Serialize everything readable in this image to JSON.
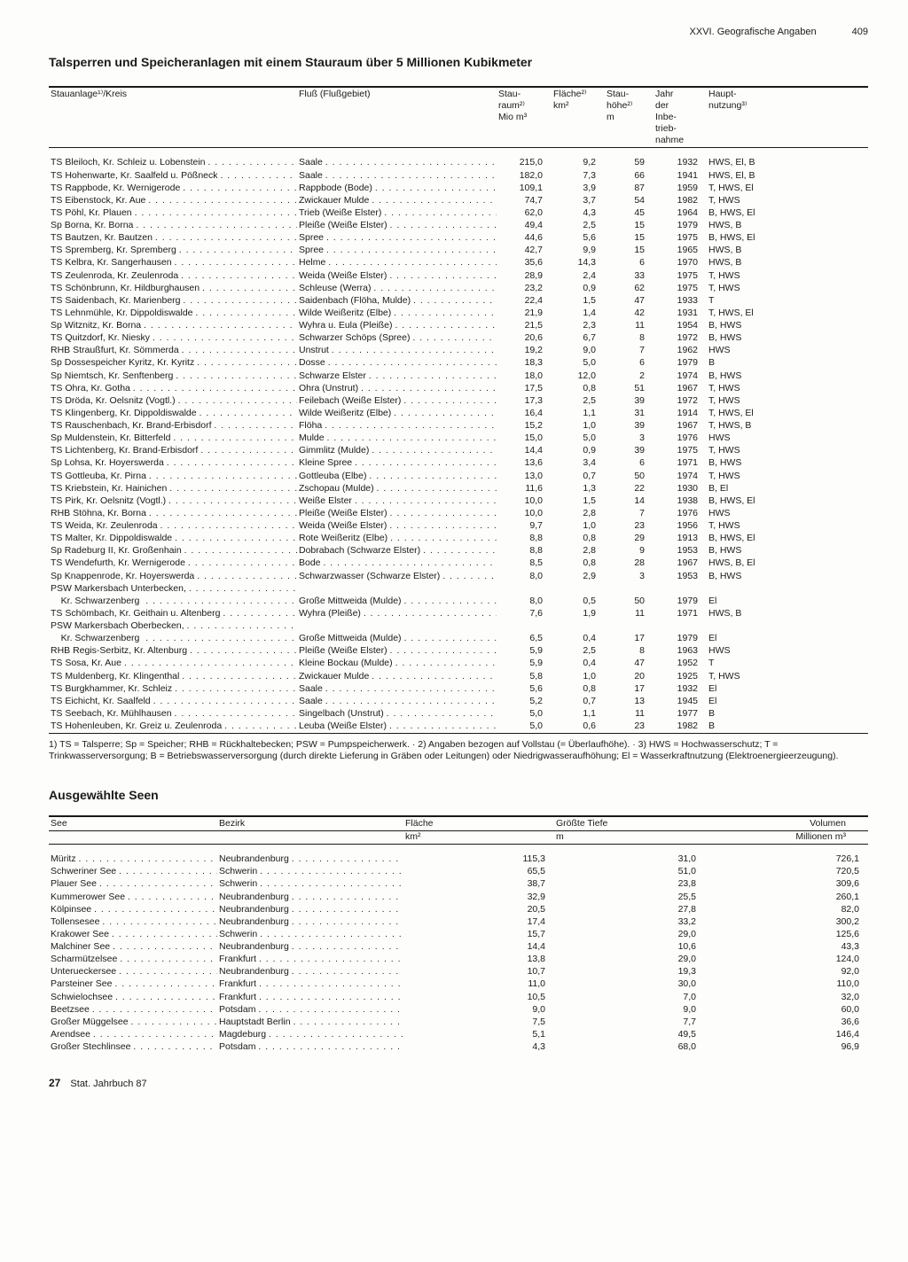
{
  "header": {
    "section": "XXVI. Geografische Angaben",
    "page": "409"
  },
  "title1": "Talsperren und Speicheranlagen mit einem Stauraum über 5 Millionen Kubikmeter",
  "dams": {
    "columns": {
      "c1": "Stauanlage¹⁾/Kreis",
      "c2": "Fluß (Flußgebiet)",
      "c3a": "Stau-",
      "c3b": "raum²⁾",
      "c3c": "Mio m³",
      "c4a": "Fläche²⁾",
      "c4b": "km²",
      "c5a": "Stau-",
      "c5b": "höhe²⁾",
      "c5c": "m",
      "c6a": "Jahr",
      "c6b": "der",
      "c6c": "Inbe-",
      "c6d": "trieb-",
      "c6e": "nahme",
      "c7a": "Haupt-",
      "c7b": "nutzung³⁾"
    },
    "rows": [
      [
        "TS Bleiloch, Kr. Schleiz u. Lobenstein",
        "Saale",
        "215,0",
        "9,2",
        "59",
        "1932",
        "HWS, El, B"
      ],
      [
        "TS Hohenwarte, Kr. Saalfeld u. Pößneck",
        "Saale",
        "182,0",
        "7,3",
        "66",
        "1941",
        "HWS, El, B"
      ],
      [
        "TS Rappbode, Kr. Wernigerode",
        "Rappbode (Bode)",
        "109,1",
        "3,9",
        "87",
        "1959",
        "T, HWS, El"
      ],
      [
        "TS Eibenstock, Kr. Aue",
        "Zwickauer Mulde",
        "74,7",
        "3,7",
        "54",
        "1982",
        "T, HWS"
      ],
      [
        "TS Pöhl, Kr. Plauen",
        "Trieb (Weiße Elster)",
        "62,0",
        "4,3",
        "45",
        "1964",
        "B, HWS, El"
      ],
      [
        "Sp Borna, Kr. Borna",
        "Pleiße (Weiße Elster)",
        "49,4",
        "2,5",
        "15",
        "1979",
        "HWS, B"
      ],
      [
        "TS Bautzen, Kr. Bautzen",
        "Spree",
        "44,6",
        "5,6",
        "15",
        "1975",
        "B, HWS, El"
      ],
      [
        "TS Spremberg, Kr. Spremberg",
        "Spree",
        "42,7",
        "9,9",
        "15",
        "1965",
        "HWS, B"
      ],
      [
        "TS Kelbra, Kr. Sangerhausen",
        "Helme",
        "35,6",
        "14,3",
        "6",
        "1970",
        "HWS, B"
      ],
      [
        "TS Zeulenroda, Kr. Zeulenroda",
        "Weida (Weiße Elster)",
        "28,9",
        "2,4",
        "33",
        "1975",
        "T, HWS"
      ],
      [
        "TS Schönbrunn, Kr. Hildburghausen",
        "Schleuse (Werra)",
        "23,2",
        "0,9",
        "62",
        "1975",
        "T, HWS"
      ],
      [
        "TS Saidenbach, Kr. Marienberg",
        "Saidenbach (Flöha, Mulde)",
        "22,4",
        "1,5",
        "47",
        "1933",
        "T"
      ],
      [
        "TS Lehnmühle, Kr. Dippoldiswalde",
        "Wilde Weißeritz (Elbe)",
        "21,9",
        "1,4",
        "42",
        "1931",
        "T, HWS, El"
      ],
      [
        "Sp Witznitz, Kr. Borna",
        "Wyhra u. Eula (Pleiße)",
        "21,5",
        "2,3",
        "11",
        "1954",
        "B, HWS"
      ],
      [
        "TS Quitzdorf, Kr. Niesky",
        "Schwarzer Schöps (Spree)",
        "20,6",
        "6,7",
        "8",
        "1972",
        "B, HWS"
      ],
      [
        "RHB Straußfurt, Kr. Sömmerda",
        "Unstrut",
        "19,2",
        "9,0",
        "7",
        "1962",
        "HWS"
      ],
      [
        "Sp Dossespeicher Kyritz, Kr. Kyritz",
        "Dosse",
        "18,3",
        "5,0",
        "6",
        "1979",
        "B"
      ],
      [
        "Sp Niemtsch, Kr. Senftenberg",
        "Schwarze Elster",
        "18,0",
        "12,0",
        "2",
        "1974",
        "B, HWS"
      ],
      [
        "TS Ohra, Kr. Gotha",
        "Ohra (Unstrut)",
        "17,5",
        "0,8",
        "51",
        "1967",
        "T, HWS"
      ],
      [
        "TS Dröda, Kr. Oelsnitz (Vogtl.)",
        "Feilebach (Weiße Elster)",
        "17,3",
        "2,5",
        "39",
        "1972",
        "T, HWS"
      ],
      [
        "TS Klingenberg, Kr. Dippoldiswalde",
        "Wilde Weißeritz (Elbe)",
        "16,4",
        "1,1",
        "31",
        "1914",
        "T, HWS, El"
      ],
      [
        "TS Rauschenbach, Kr. Brand-Erbisdorf",
        "Flöha",
        "15,2",
        "1,0",
        "39",
        "1967",
        "T, HWS, B"
      ],
      [
        "Sp Muldenstein, Kr. Bitterfeld",
        "Mulde",
        "15,0",
        "5,0",
        "3",
        "1976",
        "HWS"
      ],
      [
        "TS Lichtenberg, Kr. Brand-Erbisdorf",
        "Gimmlitz (Mulde)",
        "14,4",
        "0,9",
        "39",
        "1975",
        "T, HWS"
      ],
      [
        "Sp Lohsa, Kr. Hoyerswerda",
        "Kleine Spree",
        "13,6",
        "3,4",
        "6",
        "1971",
        "B, HWS"
      ],
      [
        "TS Gottleuba, Kr. Pirna",
        "Gottleuba (Elbe)",
        "13,0",
        "0,7",
        "50",
        "1974",
        "T, HWS"
      ],
      [
        "TS Kriebstein, Kr. Hainichen",
        "Zschopau (Mulde)",
        "11,6",
        "1,3",
        "22",
        "1930",
        "B, El"
      ],
      [
        "TS Pirk, Kr. Oelsnitz (Vogtl.)",
        "Weiße Elster",
        "10,0",
        "1,5",
        "14",
        "1938",
        "B, HWS, El"
      ],
      [
        "RHB Stöhna, Kr. Borna",
        "Pleiße (Weiße Elster)",
        "10,0",
        "2,8",
        "7",
        "1976",
        "HWS"
      ],
      [
        "TS Weida, Kr. Zeulenroda",
        "Weida (Weiße Elster)",
        "9,7",
        "1,0",
        "23",
        "1956",
        "T, HWS"
      ],
      [
        "TS Malter, Kr. Dippoldiswalde",
        "Rote Weißeritz (Elbe)",
        "8,8",
        "0,8",
        "29",
        "1913",
        "B, HWS, El"
      ],
      [
        "Sp Radeburg II, Kr. Großenhain",
        "Dobrabach (Schwarze Elster)",
        "8,8",
        "2,8",
        "9",
        "1953",
        "B, HWS"
      ],
      [
        "TS Wendefurth, Kr. Wernigerode",
        "Bode",
        "8,5",
        "0,8",
        "28",
        "1967",
        "HWS, B, El"
      ],
      [
        "Sp Knappenrode, Kr. Hoyerswerda",
        "Schwarzwasser (Schwarze Elster)",
        "8,0",
        "2,9",
        "3",
        "1953",
        "B, HWS"
      ],
      [
        "PSW Markersbach Unterbecken,",
        "",
        "",
        "",
        "",
        "",
        ""
      ],
      [
        "    Kr. Schwarzenberg",
        "Große Mittweida (Mulde)",
        "8,0",
        "0,5",
        "50",
        "1979",
        "El"
      ],
      [
        "TS Schömbach, Kr. Geithain u. Altenberg",
        "Wyhra (Pleiße)",
        "7,6",
        "1,9",
        "11",
        "1971",
        "HWS, B"
      ],
      [
        "PSW Markersbach Oberbecken,",
        "",
        "",
        "",
        "",
        "",
        ""
      ],
      [
        "    Kr. Schwarzenberg",
        "Große Mittweida (Mulde)",
        "6,5",
        "0,4",
        "17",
        "1979",
        "El"
      ],
      [
        "RHB Regis-Serbitz, Kr. Altenburg",
        "Pleiße (Weiße Elster)",
        "5,9",
        "2,5",
        "8",
        "1963",
        "HWS"
      ],
      [
        "TS Sosa, Kr. Aue",
        "Kleine Bockau (Mulde)",
        "5,9",
        "0,4",
        "47",
        "1952",
        "T"
      ],
      [
        "TS Muldenberg, Kr. Klingenthal",
        "Zwickauer Mulde",
        "5,8",
        "1,0",
        "20",
        "1925",
        "T, HWS"
      ],
      [
        "TS Burgkhammer, Kr. Schleiz",
        "Saale",
        "5,6",
        "0,8",
        "17",
        "1932",
        "El"
      ],
      [
        "TS Eichicht, Kr. Saalfeld",
        "Saale",
        "5,2",
        "0,7",
        "13",
        "1945",
        "El"
      ],
      [
        "TS Seebach, Kr. Mühlhausen",
        "Singelbach (Unstrut)",
        "5,0",
        "1,1",
        "11",
        "1977",
        "B"
      ],
      [
        "TS Hohenleuben, Kr. Greiz u. Zeulenroda",
        "Leuba (Weiße Elster)",
        "5,0",
        "0,6",
        "23",
        "1982",
        "B"
      ]
    ],
    "footnote": "1) TS = Talsperre; Sp = Speicher; RHB = Rückhaltebecken; PSW = Pumpspeicherwerk. · 2) Angaben bezogen auf Vollstau (= Überlaufhöhe). · 3) HWS = Hochwasserschutz; T = Trinkwasserversorgung; B = Betriebswasserversorgung (durch direkte Lieferung in Gräben oder Leitungen) oder Niedrigwasseraufhöhung; El = Wasserkraftnutzung (Elektroenergieerzeugung)."
  },
  "title2": "Ausgewählte Seen",
  "lakes": {
    "columns": {
      "c1": "See",
      "c2": "Bezirk",
      "c3a": "Fläche",
      "c3b": "km²",
      "c4a": "Größte Tiefe",
      "c4b": "m",
      "c5a": "Volumen",
      "c5b": "Millionen m³"
    },
    "rows": [
      [
        "Müritz",
        "Neubrandenburg",
        "115,3",
        "31,0",
        "726,1"
      ],
      [
        "Schweriner See",
        "Schwerin",
        "65,5",
        "51,0",
        "720,5"
      ],
      [
        "Plauer See",
        "Schwerin",
        "38,7",
        "23,8",
        "309,6"
      ],
      [
        "Kummerower See",
        "Neubrandenburg",
        "32,9",
        "25,5",
        "260,1"
      ],
      [
        "Kölpinsee",
        "Neubrandenburg",
        "20,5",
        "27,8",
        "82,0"
      ],
      [
        "Tollensesee",
        "Neubrandenburg",
        "17,4",
        "33,2",
        "300,2"
      ],
      [
        "Krakower See",
        "Schwerin",
        "15,7",
        "29,0",
        "125,6"
      ],
      [
        "Malchiner See",
        "Neubrandenburg",
        "14,4",
        "10,6",
        "43,3"
      ],
      [
        "Scharmützelsee",
        "Frankfurt",
        "13,8",
        "29,0",
        "124,0"
      ],
      [
        "Unterueckersee",
        "Neubrandenburg",
        "10,7",
        "19,3",
        "92,0"
      ],
      [
        "Parsteiner See",
        "Frankfurt",
        "11,0",
        "30,0",
        "110,0"
      ],
      [
        "Schwielochsee",
        "Frankfurt",
        "10,5",
        "7,0",
        "32,0"
      ],
      [
        "Beetzsee",
        "Potsdam",
        "9,0",
        "9,0",
        "60,0"
      ],
      [
        "Großer Müggelsee",
        "Hauptstadt Berlin",
        "7,5",
        "7,7",
        "36,6"
      ],
      [
        "Arendsee",
        "Magdeburg",
        "5,1",
        "49,5",
        "146,4"
      ],
      [
        "Großer Stechlinsee",
        "Potsdam",
        "4,3",
        "68,0",
        "96,9"
      ]
    ]
  },
  "footer": {
    "num": "27",
    "text": "Stat. Jahrbuch 87"
  }
}
